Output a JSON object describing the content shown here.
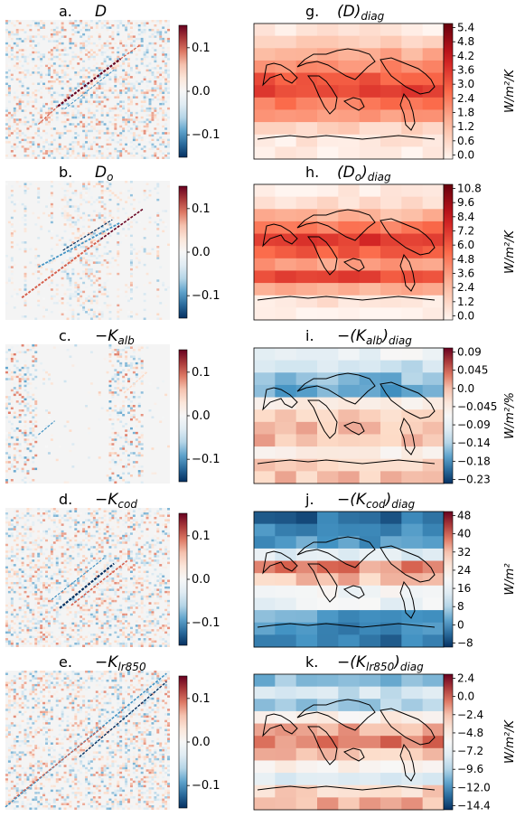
{
  "figure": {
    "panel_count": 10
  },
  "colors": {
    "neg_dark": "#053061",
    "neg_mid": "#4393c3",
    "neg_light": "#d1e5f0",
    "white": "#f7f7f7",
    "pos_light": "#fddbc7",
    "pos_mid": "#d6604d",
    "pos_dark": "#67001f",
    "coast": "#000000"
  },
  "panels": [
    {
      "letter": "a.",
      "label": "D",
      "sub": "",
      "type": "matrix",
      "pattern": "diag_strong",
      "colorbar": {
        "ticks": [
          "0.1",
          "0.0",
          "−0.1"
        ],
        "vmin": -0.15,
        "vmax": 0.15,
        "unit": ""
      }
    },
    {
      "letter": "b.",
      "label": "D",
      "sub": "o",
      "type": "matrix",
      "pattern": "diag_double",
      "colorbar": {
        "ticks": [
          "0.1",
          "0.0",
          "−0.1"
        ],
        "vmin": -0.15,
        "vmax": 0.15,
        "unit": ""
      }
    },
    {
      "letter": "c.",
      "label": "−K",
      "sub": "alb",
      "type": "matrix",
      "pattern": "sparse",
      "colorbar": {
        "ticks": [
          "0.1",
          "0.0",
          "−0.1"
        ],
        "vmin": -0.15,
        "vmax": 0.15,
        "unit": ""
      }
    },
    {
      "letter": "d.",
      "label": "−K",
      "sub": "cod",
      "type": "matrix",
      "pattern": "diag_cod",
      "colorbar": {
        "ticks": [
          "0.1",
          "0.0",
          "−0.1"
        ],
        "vmin": -0.15,
        "vmax": 0.15,
        "unit": ""
      }
    },
    {
      "letter": "e.",
      "label": "−K",
      "sub": "lr850",
      "type": "matrix",
      "pattern": "diag_full",
      "colorbar": {
        "ticks": [
          "0.1",
          "0.0",
          "−0.1"
        ],
        "vmin": -0.15,
        "vmax": 0.15,
        "unit": ""
      }
    },
    {
      "letter": "g.",
      "label": "(D)",
      "sub": "diag",
      "type": "map",
      "pattern": "map_D",
      "colorbar": {
        "ticks": [
          "5.4",
          "4.8",
          "4.2",
          "3.6",
          "3.0",
          "2.4",
          "1.8",
          "1.2",
          "0.6",
          "0.0"
        ],
        "vmin": 0,
        "vmax": 5.4,
        "unit": "W/m²/K",
        "cmap": "reds"
      }
    },
    {
      "letter": "h.",
      "label": "(D",
      "sub": "o",
      "label2": ")",
      "sub2": "diag",
      "type": "map",
      "pattern": "map_Do",
      "colorbar": {
        "ticks": [
          "10.8",
          "9.6",
          "8.4",
          "7.2",
          "6.0",
          "4.8",
          "3.6",
          "2.4",
          "1.2",
          "0.0"
        ],
        "vmin": 0,
        "vmax": 10.8,
        "unit": "W/m²/K",
        "cmap": "reds"
      }
    },
    {
      "letter": "i.",
      "label": "−(K",
      "sub": "alb",
      "label2": ")",
      "sub2": "diag",
      "type": "map",
      "pattern": "map_alb",
      "colorbar": {
        "ticks": [
          "0.09",
          "0.045",
          "0.0",
          "−0.045",
          "−0.09",
          "−0.14",
          "−0.18",
          "−0.23"
        ],
        "vmin": -0.25,
        "vmax": 0.09,
        "unit": "W/m²/%",
        "cmap": "div"
      }
    },
    {
      "letter": "j.",
      "label": "−(K",
      "sub": "cod",
      "label2": ")",
      "sub2": "diag",
      "type": "map",
      "pattern": "map_cod",
      "colorbar": {
        "ticks": [
          "48",
          "40",
          "32",
          "24",
          "16",
          "8",
          "0",
          "−8"
        ],
        "vmin": -8,
        "vmax": 52,
        "unit": "W/m²",
        "cmap": "div"
      }
    },
    {
      "letter": "k.",
      "label": "−(K",
      "sub": "lr850",
      "label2": ")",
      "sub2": "diag",
      "type": "map",
      "pattern": "map_lr",
      "colorbar": {
        "ticks": [
          "2.4",
          "0.0",
          "−2.4",
          "−4.8",
          "−7.2",
          "−9.6",
          "−12.0",
          "−14.4"
        ],
        "vmin": -15.6,
        "vmax": 2.6,
        "unit": "W/m²/K",
        "cmap": "div"
      }
    }
  ],
  "chart_data": [
    {
      "type": "heatmap",
      "title": "a. D",
      "colorbar_range": [
        -0.15,
        0.15
      ],
      "colorbar_ticks": [
        0.1,
        0.0,
        -0.1
      ]
    },
    {
      "type": "heatmap",
      "title": "b. D_o",
      "colorbar_range": [
        -0.15,
        0.15
      ],
      "colorbar_ticks": [
        0.1,
        0.0,
        -0.1
      ]
    },
    {
      "type": "heatmap",
      "title": "c. −K_alb",
      "colorbar_range": [
        -0.15,
        0.15
      ],
      "colorbar_ticks": [
        0.1,
        0.0,
        -0.1
      ]
    },
    {
      "type": "heatmap",
      "title": "d. −K_cod",
      "colorbar_range": [
        -0.15,
        0.15
      ],
      "colorbar_ticks": [
        0.1,
        0.0,
        -0.1
      ]
    },
    {
      "type": "heatmap",
      "title": "e. −K_lr850",
      "colorbar_range": [
        -0.15,
        0.15
      ],
      "colorbar_ticks": [
        0.1,
        0.0,
        -0.1
      ]
    },
    {
      "type": "heatmap",
      "title": "g. (D)_diag",
      "colorbar_label": "W/m²/K",
      "colorbar_ticks": [
        5.4,
        4.8,
        4.2,
        3.6,
        3.0,
        2.4,
        1.8,
        1.2,
        0.6,
        0.0
      ]
    },
    {
      "type": "heatmap",
      "title": "h. (D_o)_diag",
      "colorbar_label": "W/m²/K",
      "colorbar_ticks": [
        10.8,
        9.6,
        8.4,
        7.2,
        6.0,
        4.8,
        3.6,
        2.4,
        1.2,
        0.0
      ]
    },
    {
      "type": "heatmap",
      "title": "i. −(K_alb)_diag",
      "colorbar_label": "W/m²/%",
      "colorbar_ticks": [
        0.09,
        0.045,
        0.0,
        -0.045,
        -0.09,
        -0.14,
        -0.18,
        -0.23
      ]
    },
    {
      "type": "heatmap",
      "title": "j. −(K_cod)_diag",
      "colorbar_label": "W/m²",
      "colorbar_ticks": [
        48,
        40,
        32,
        24,
        16,
        8,
        0,
        -8
      ]
    },
    {
      "type": "heatmap",
      "title": "k. −(K_lr850)_diag",
      "colorbar_label": "W/m²/K",
      "colorbar_ticks": [
        2.4,
        0.0,
        -2.4,
        -4.8,
        -7.2,
        -9.6,
        -12.0,
        -14.4
      ]
    }
  ]
}
